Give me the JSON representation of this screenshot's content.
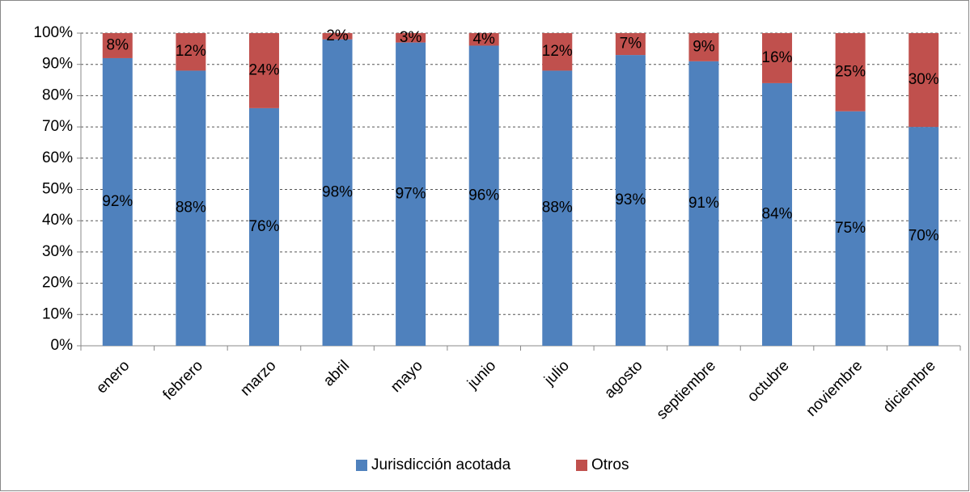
{
  "chart_data": {
    "type": "stacked_bar",
    "categories": [
      "enero",
      "febrero",
      "marzo",
      "abril",
      "mayo",
      "junio",
      "julio",
      "agosto",
      "septiembre",
      "octubre",
      "noviembre",
      "diciembre"
    ],
    "series": [
      {
        "name": "Jurisdicción acotada",
        "color": "#4f81bd",
        "values": [
          92,
          88,
          76,
          98,
          97,
          96,
          88,
          93,
          91,
          84,
          75,
          70
        ],
        "value_labels": [
          "92%",
          "88%",
          "76%",
          "98%",
          "97%",
          "96%",
          "88%",
          "93%",
          "91%",
          "84%",
          "75%",
          "70%"
        ]
      },
      {
        "name": "Otros",
        "color": "#c0504d",
        "values": [
          8,
          12,
          24,
          2,
          3,
          4,
          12,
          7,
          9,
          16,
          25,
          30
        ],
        "value_labels": [
          "8%",
          "12%",
          "24%",
          "2%",
          "3%",
          "4%",
          "12%",
          "7%",
          "9%",
          "16%",
          "25%",
          "30%"
        ]
      }
    ],
    "ylim": [
      0,
      100
    ],
    "yticks": [
      {
        "value": 0,
        "label": "0%"
      },
      {
        "value": 10,
        "label": "10%"
      },
      {
        "value": 20,
        "label": "20%"
      },
      {
        "value": 30,
        "label": "30%"
      },
      {
        "value": 40,
        "label": "40%"
      },
      {
        "value": 50,
        "label": "50%"
      },
      {
        "value": 60,
        "label": "60%"
      },
      {
        "value": 70,
        "label": "70%"
      },
      {
        "value": 80,
        "label": "80%"
      },
      {
        "value": 90,
        "label": "90%"
      },
      {
        "value": 100,
        "label": "100%"
      }
    ],
    "grid": true,
    "legend": "bottom"
  }
}
